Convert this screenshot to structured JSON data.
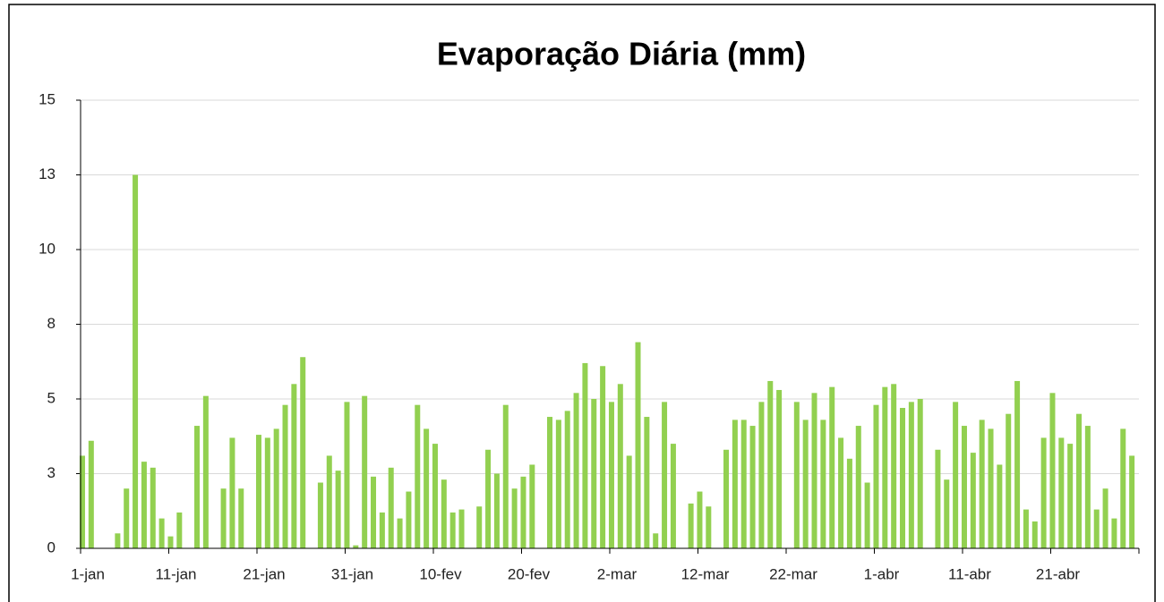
{
  "chart_data": {
    "type": "bar",
    "title": "Evaporação Diária (mm)",
    "categories": [
      "1-jan",
      null,
      null,
      null,
      null,
      null,
      null,
      null,
      null,
      null,
      "11-jan",
      null,
      null,
      null,
      null,
      null,
      null,
      null,
      null,
      null,
      "21-jan",
      null,
      null,
      null,
      null,
      null,
      null,
      null,
      null,
      null,
      "31-jan",
      null,
      null,
      null,
      null,
      null,
      null,
      null,
      null,
      null,
      "10-fev",
      null,
      null,
      null,
      null,
      null,
      null,
      null,
      null,
      null,
      "20-fev",
      null,
      null,
      null,
      null,
      null,
      null,
      null,
      null,
      null,
      "2-mar",
      null,
      null,
      null,
      null,
      null,
      null,
      null,
      null,
      null,
      "12-mar",
      null,
      null,
      null,
      null,
      null,
      null,
      null,
      null,
      null,
      "22-mar",
      null,
      null,
      null,
      null,
      null,
      null,
      null,
      null,
      null,
      "1-abr",
      null,
      null,
      null,
      null,
      null,
      null,
      null,
      null,
      null,
      "11-abr",
      null,
      null,
      null,
      null,
      null,
      null,
      null,
      null,
      null,
      "21-abr",
      null,
      null,
      null,
      null,
      null,
      null,
      null,
      null,
      null
    ],
    "values": [
      3.1,
      3.6,
      0,
      0,
      0.5,
      2.0,
      12.5,
      2.9,
      2.7,
      1.0,
      0.4,
      1.2,
      0,
      4.1,
      5.1,
      0,
      2.0,
      3.7,
      2.0,
      0,
      3.8,
      3.7,
      4.0,
      4.8,
      5.5,
      6.4,
      0,
      2.2,
      3.1,
      2.6,
      4.9,
      0.1,
      5.1,
      2.4,
      1.2,
      2.7,
      1.0,
      1.9,
      4.8,
      4.0,
      3.5,
      2.3,
      1.2,
      1.3,
      0,
      1.4,
      3.3,
      2.5,
      4.8,
      2.0,
      2.4,
      2.8,
      0,
      4.4,
      4.3,
      4.6,
      5.2,
      6.2,
      5.0,
      6.1,
      4.9,
      5.5,
      3.1,
      6.9,
      4.4,
      0.5,
      4.9,
      3.5,
      0,
      1.5,
      1.9,
      1.4,
      0,
      3.3,
      4.3,
      4.3,
      4.1,
      4.9,
      5.6,
      5.3,
      0,
      4.9,
      4.3,
      5.2,
      4.3,
      5.4,
      3.7,
      3.0,
      4.1,
      2.2,
      4.8,
      5.4,
      5.5,
      4.7,
      4.9,
      5.0,
      0,
      3.3,
      2.3,
      4.9,
      4.1,
      3.2,
      4.3,
      4.0,
      2.8,
      4.5,
      5.6,
      1.3,
      0.9,
      3.7,
      5.2,
      3.7,
      3.5,
      4.5,
      4.1,
      1.3,
      2.0,
      1.0,
      4.0,
      3.1
    ],
    "color": "#92d050",
    "ylim": [
      0,
      15
    ],
    "yticks": [
      0,
      {
        "value": 2.5,
        "label": "3"
      },
      5,
      {
        "value": 7.5,
        "label": "8"
      },
      10,
      {
        "value": 12.5,
        "label": "13"
      },
      15
    ],
    "grid": true
  }
}
